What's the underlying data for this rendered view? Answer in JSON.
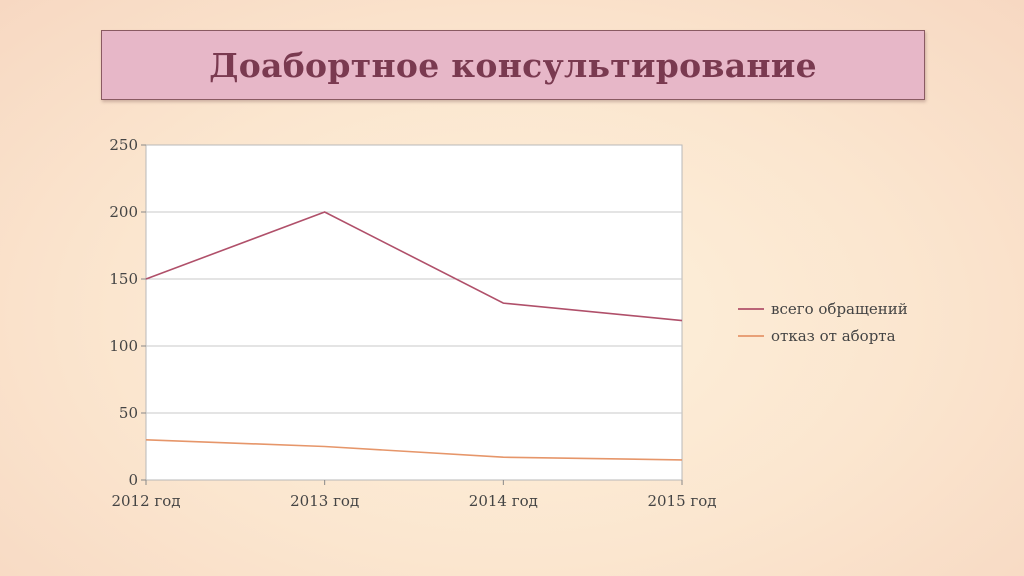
{
  "slide": {
    "title": "Доабортное консультирование"
  },
  "chart_data": {
    "type": "line",
    "title": "",
    "xlabel": "",
    "ylabel": "",
    "categories": [
      "2012 год",
      "2013 год",
      "2014 год",
      "2015 год"
    ],
    "ylim": [
      0,
      250
    ],
    "yticks": [
      0,
      50,
      100,
      150,
      200,
      250
    ],
    "grid": true,
    "legend_position": "right",
    "series": [
      {
        "name": "всего обращений",
        "values": [
          150,
          200,
          132,
          119
        ],
        "color": "#b0506a"
      },
      {
        "name": "отказ от аборта",
        "values": [
          30,
          25,
          17,
          15
        ],
        "color": "#e6966a"
      }
    ]
  }
}
